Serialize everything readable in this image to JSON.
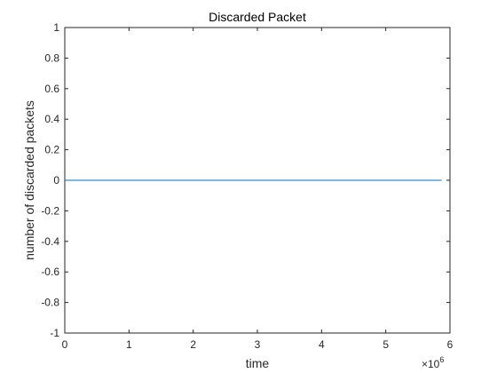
{
  "chart_data": {
    "type": "line",
    "title": "Discarded Packet",
    "xlabel": "time",
    "ylabel": "number of discarded packets",
    "x_multiplier_label": "×10",
    "x_multiplier_exponent": "6",
    "xlim": [
      0,
      6
    ],
    "ylim": [
      -1,
      1
    ],
    "xticks": [
      0,
      1,
      2,
      3,
      4,
      5,
      6
    ],
    "xtick_labels": [
      "0",
      "1",
      "2",
      "3",
      "4",
      "5",
      "6"
    ],
    "yticks": [
      -1,
      -0.8,
      -0.6,
      -0.4,
      -0.2,
      0,
      0.2,
      0.4,
      0.6,
      0.8,
      1
    ],
    "ytick_labels": [
      "-1",
      "-0.8",
      "-0.6",
      "-0.4",
      "-0.2",
      "0",
      "0.2",
      "0.4",
      "0.6",
      "0.8",
      "1"
    ],
    "grid": false,
    "series": [
      {
        "x": [
          0,
          5.87
        ],
        "y": [
          0,
          0
        ],
        "color": "#0072BD"
      }
    ]
  }
}
